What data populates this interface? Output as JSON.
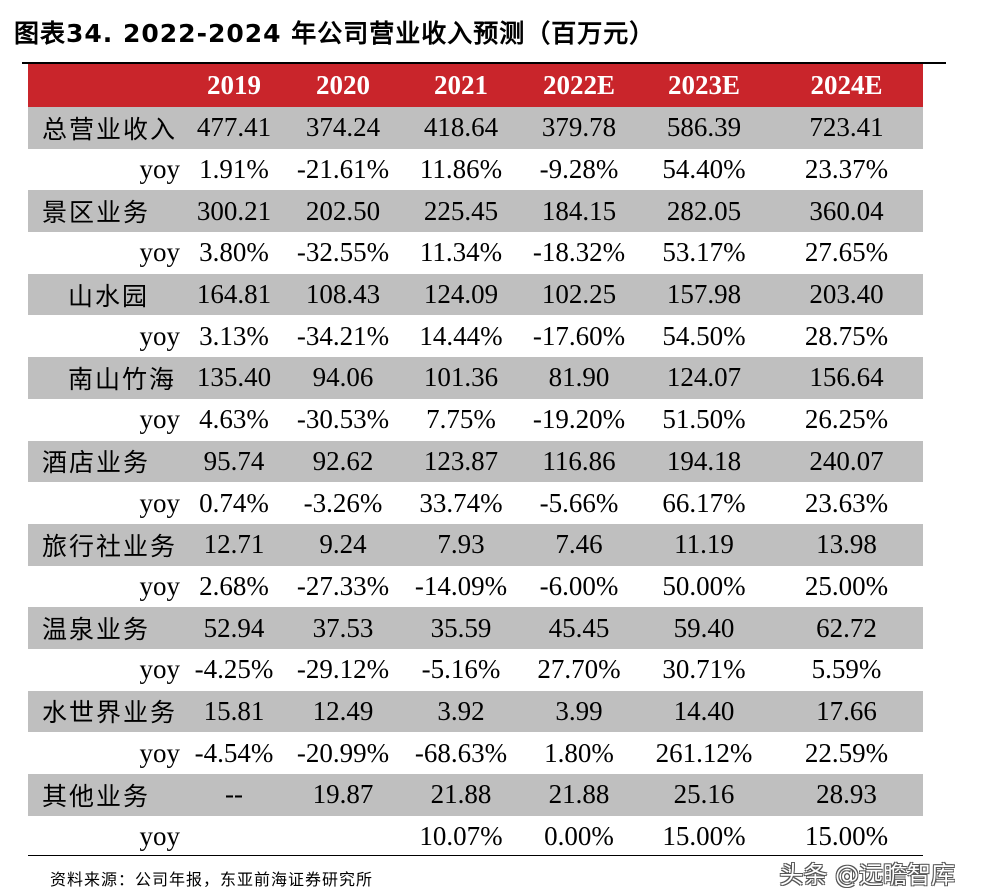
{
  "title": "图表34. 2022-2024 年公司营业收入预测（百万元）",
  "headers": [
    "",
    "2019",
    "2020",
    "2021",
    "2022E",
    "2023E",
    "2024E"
  ],
  "rows": [
    {
      "label": "总营业收入",
      "kind": "main",
      "values": [
        "477.41",
        "374.24",
        "418.64",
        "379.78",
        "586.39",
        "723.41"
      ]
    },
    {
      "label": "yoy",
      "kind": "yoy",
      "values": [
        "1.91%",
        "-21.61%",
        "11.86%",
        "-9.28%",
        "54.40%",
        "23.37%"
      ]
    },
    {
      "label": "景区业务",
      "kind": "main",
      "values": [
        "300.21",
        "202.50",
        "225.45",
        "184.15",
        "282.05",
        "360.04"
      ]
    },
    {
      "label": "yoy",
      "kind": "yoy",
      "values": [
        "3.80%",
        "-32.55%",
        "11.34%",
        "-18.32%",
        "53.17%",
        "27.65%"
      ]
    },
    {
      "label": "山水园",
      "kind": "sub",
      "values": [
        "164.81",
        "108.43",
        "124.09",
        "102.25",
        "157.98",
        "203.40"
      ]
    },
    {
      "label": "yoy",
      "kind": "yoy",
      "values": [
        "3.13%",
        "-34.21%",
        "14.44%",
        "-17.60%",
        "54.50%",
        "28.75%"
      ]
    },
    {
      "label": "南山竹海",
      "kind": "sub",
      "values": [
        "135.40",
        "94.06",
        "101.36",
        "81.90",
        "124.07",
        "156.64"
      ]
    },
    {
      "label": "yoy",
      "kind": "yoy",
      "values": [
        "4.63%",
        "-30.53%",
        "7.75%",
        "-19.20%",
        "51.50%",
        "26.25%"
      ]
    },
    {
      "label": "酒店业务",
      "kind": "main",
      "values": [
        "95.74",
        "92.62",
        "123.87",
        "116.86",
        "194.18",
        "240.07"
      ]
    },
    {
      "label": "yoy",
      "kind": "yoy",
      "values": [
        "0.74%",
        "-3.26%",
        "33.74%",
        "-5.66%",
        "66.17%",
        "23.63%"
      ]
    },
    {
      "label": "旅行社业务",
      "kind": "main",
      "values": [
        "12.71",
        "9.24",
        "7.93",
        "7.46",
        "11.19",
        "13.98"
      ]
    },
    {
      "label": "yoy",
      "kind": "yoy",
      "values": [
        "2.68%",
        "-27.33%",
        "-14.09%",
        "-6.00%",
        "50.00%",
        "25.00%"
      ]
    },
    {
      "label": "温泉业务",
      "kind": "main",
      "values": [
        "52.94",
        "37.53",
        "35.59",
        "45.45",
        "59.40",
        "62.72"
      ]
    },
    {
      "label": "yoy",
      "kind": "yoy",
      "values": [
        "-4.25%",
        "-29.12%",
        "-5.16%",
        "27.70%",
        "30.71%",
        "5.59%"
      ]
    },
    {
      "label": "水世界业务",
      "kind": "main",
      "values": [
        "15.81",
        "12.49",
        "3.92",
        "3.99",
        "14.40",
        "17.66"
      ]
    },
    {
      "label": "yoy",
      "kind": "yoy",
      "values": [
        "-4.54%",
        "-20.99%",
        "-68.63%",
        "1.80%",
        "261.12%",
        "22.59%"
      ]
    },
    {
      "label": "其他业务",
      "kind": "main",
      "values": [
        "--",
        "19.87",
        "21.88",
        "21.88",
        "25.16",
        "28.93"
      ]
    },
    {
      "label": "yoy",
      "kind": "yoy",
      "values": [
        "",
        "",
        "10.07%",
        "0.00%",
        "15.00%",
        "15.00%"
      ]
    }
  ],
  "source": "资料来源：公司年报，东亚前海证券研究所",
  "watermark": "头条 @远瞻智库",
  "colors": {
    "header_bg": "#c9252b",
    "stripe_bg": "#bfbfbf"
  }
}
